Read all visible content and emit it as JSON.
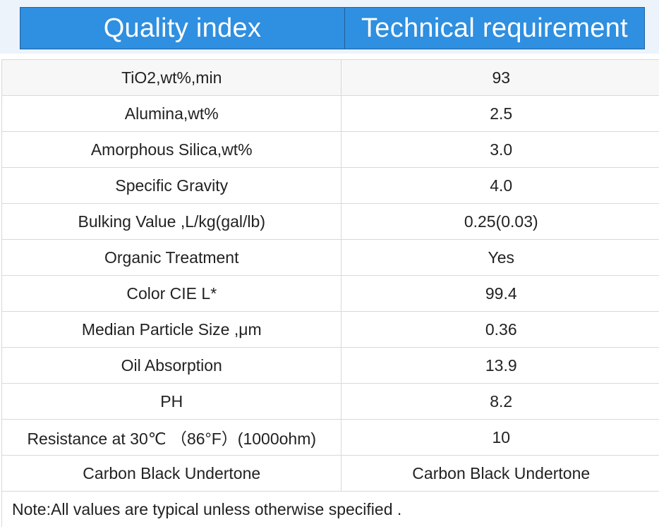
{
  "table": {
    "headers": {
      "quality_index": "Quality index",
      "technical_requirement": "Technical requirement"
    },
    "rows": [
      {
        "index": "TiO2,wt%,min",
        "requirement": "93"
      },
      {
        "index": "Alumina,wt%",
        "requirement": "2.5"
      },
      {
        "index": "Amorphous Silica,wt%",
        "requirement": "3.0"
      },
      {
        "index": "Specific Gravity",
        "requirement": "4.0"
      },
      {
        "index": "Bulking Value ,L/kg(gal/lb)",
        "requirement": "0.25(0.03)"
      },
      {
        "index": "Organic Treatment",
        "requirement": "Yes"
      },
      {
        "index": "Color CIE L*",
        "requirement": "99.4"
      },
      {
        "index": "Median Particle Size ,μm",
        "requirement": "0.36"
      },
      {
        "index": "Oil Absorption",
        "requirement": "13.9"
      },
      {
        "index": "PH",
        "requirement": "8.2"
      },
      {
        "index": "Resistance at 30℃ （86°F）(1000ohm)",
        "requirement": "10"
      },
      {
        "index": "Carbon Black Undertone",
        "requirement": "Carbon Black Undertone"
      }
    ],
    "note": "Note:All values are typical unless otherwise specified ."
  },
  "colors": {
    "header_bg": "#2f8fe0",
    "header_text": "#ffffff",
    "grid": "#d9d9d9"
  }
}
